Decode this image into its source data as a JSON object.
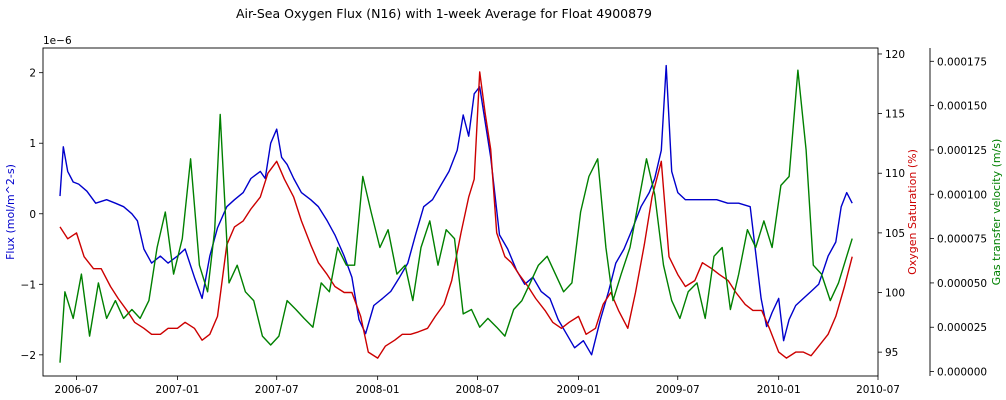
{
  "chart_data": {
    "type": "line",
    "title": "Air-Sea Oxygen Flux (N16) with 1-week Average for Float 4900879",
    "x_ticks": [
      "2006-07",
      "2007-01",
      "2007-07",
      "2008-01",
      "2008-07",
      "2009-01",
      "2009-07",
      "2010-01",
      "2010-07"
    ],
    "xlim": [
      "2006-05-01",
      "2010-07-01"
    ],
    "axes": {
      "left": {
        "label": "Flux (mol/m^2-s)",
        "color": "#0000cc",
        "offset_label": "1e−6",
        "ylim": [
          -2.3e-06,
          2.35e-06
        ],
        "ticks": [
          -2e-06,
          -1e-06,
          0,
          1e-06,
          2e-06
        ],
        "tick_labels": [
          "−2",
          "−1",
          "0",
          "1",
          "2"
        ]
      },
      "right": {
        "label": "Oxygen Saturation (%)",
        "color": "#cc0000",
        "ylim": [
          93,
          120.5
        ],
        "ticks": [
          95,
          100,
          105,
          110,
          115,
          120
        ],
        "tick_labels": [
          "95",
          "100",
          "105",
          "110",
          "115",
          "120"
        ]
      },
      "far_right": {
        "label": "Gas transfer velocity (m/s)",
        "color": "#008000",
        "ylim": [
          -2.5e-06,
          0.0001825
        ],
        "ticks": [
          0,
          2.5e-05,
          5e-05,
          7.5e-05,
          0.0001,
          0.000125,
          0.00015,
          0.000175
        ],
        "tick_labels": [
          "0.000000",
          "0.000025",
          "0.000050",
          "0.000075",
          "0.000100",
          "0.000125",
          "0.000150",
          "0.000175"
        ]
      }
    },
    "series": [
      {
        "axis": "left",
        "color": "#0000cc",
        "x": [
          "2006-06-01",
          "2006-06-07",
          "2006-06-15",
          "2006-06-25",
          "2006-07-05",
          "2006-07-20",
          "2006-08-05",
          "2006-08-25",
          "2006-09-10",
          "2006-09-25",
          "2006-10-10",
          "2006-10-20",
          "2006-11-01",
          "2006-11-15",
          "2006-12-01",
          "2006-12-15",
          "2007-01-01",
          "2007-01-15",
          "2007-02-01",
          "2007-02-15",
          "2007-03-01",
          "2007-03-15",
          "2007-04-01",
          "2007-04-15",
          "2007-05-01",
          "2007-05-15",
          "2007-06-01",
          "2007-06-10",
          "2007-06-20",
          "2007-07-01",
          "2007-07-10",
          "2007-07-20",
          "2007-08-01",
          "2007-08-15",
          "2007-09-01",
          "2007-09-15",
          "2007-10-01",
          "2007-10-15",
          "2007-11-01",
          "2007-11-15",
          "2007-11-28",
          "2007-12-10",
          "2007-12-25",
          "2008-01-10",
          "2008-01-25",
          "2008-02-10",
          "2008-02-25",
          "2008-03-10",
          "2008-03-25",
          "2008-04-10",
          "2008-04-25",
          "2008-05-10",
          "2008-05-25",
          "2008-06-05",
          "2008-06-15",
          "2008-06-25",
          "2008-07-05",
          "2008-07-15",
          "2008-07-25",
          "2008-08-10",
          "2008-08-25",
          "2008-09-10",
          "2008-09-25",
          "2008-10-10",
          "2008-10-25",
          "2008-11-10",
          "2008-11-25",
          "2008-12-10",
          "2008-12-25",
          "2009-01-10",
          "2009-01-25",
          "2009-02-10",
          "2009-02-25",
          "2009-03-10",
          "2009-03-25",
          "2009-04-10",
          "2009-04-25",
          "2009-05-10",
          "2009-05-20",
          "2009-06-01",
          "2009-06-10",
          "2009-06-20",
          "2009-07-01",
          "2009-07-15",
          "2009-08-01",
          "2009-08-20",
          "2009-09-10",
          "2009-09-30",
          "2009-10-20",
          "2009-11-10",
          "2009-11-30",
          "2009-12-10",
          "2009-12-20",
          "2010-01-01",
          "2010-01-10",
          "2010-01-20",
          "2010-02-01",
          "2010-02-15",
          "2010-03-01",
          "2010-03-15",
          "2010-04-01",
          "2010-04-15",
          "2010-04-25",
          "2010-05-05",
          "2010-05-15"
        ],
        "values": [
          2.5e-07,
          9.5e-07,
          6e-07,
          4.5e-07,
          4.2e-07,
          3.2e-07,
          1.5e-07,
          2e-07,
          1.5e-07,
          1e-07,
          0,
          -1e-07,
          -5e-07,
          -7e-07,
          -6e-07,
          -7e-07,
          -6e-07,
          -5e-07,
          -9e-07,
          -1.2e-06,
          -6e-07,
          -2e-07,
          1e-07,
          2e-07,
          3e-07,
          5e-07,
          6e-07,
          5e-07,
          1e-06,
          1.2e-06,
          8e-07,
          7e-07,
          5e-07,
          3e-07,
          2e-07,
          1e-07,
          -1e-07,
          -3e-07,
          -6e-07,
          -9e-07,
          -1.5e-06,
          -1.7e-06,
          -1.3e-06,
          -1.2e-06,
          -1.1e-06,
          -9e-07,
          -7e-07,
          -3e-07,
          1e-07,
          2e-07,
          4e-07,
          6e-07,
          9e-07,
          1.4e-06,
          1.1e-06,
          1.7e-06,
          1.8e-06,
          1.3e-06,
          8e-07,
          -3e-07,
          -5e-07,
          -8e-07,
          -1e-06,
          -9e-07,
          -1.1e-06,
          -1.2e-06,
          -1.5e-06,
          -1.7e-06,
          -1.9e-06,
          -1.8e-06,
          -2e-06,
          -1.5e-06,
          -1.1e-06,
          -7e-07,
          -5e-07,
          -2e-07,
          1e-07,
          3e-07,
          5e-07,
          9e-07,
          2.1e-06,
          6e-07,
          3e-07,
          2e-07,
          2e-07,
          2e-07,
          2e-07,
          1.5e-07,
          1.5e-07,
          1e-07,
          -1.2e-06,
          -1.6e-06,
          -1.4e-06,
          -1.2e-06,
          -1.8e-06,
          -1.5e-06,
          -1.3e-06,
          -1.2e-06,
          -1.1e-06,
          -1e-06,
          -6e-07,
          -4e-07,
          1e-07,
          3e-07,
          1.5e-07
        ]
      },
      {
        "axis": "right",
        "color": "#cc0000",
        "x": [
          "2006-06-01",
          "2006-06-15",
          "2006-07-01",
          "2006-07-15",
          "2006-08-01",
          "2006-08-15",
          "2006-09-01",
          "2006-09-15",
          "2006-10-01",
          "2006-10-15",
          "2006-11-01",
          "2006-11-15",
          "2006-12-01",
          "2006-12-15",
          "2007-01-01",
          "2007-01-15",
          "2007-02-01",
          "2007-02-15",
          "2007-03-01",
          "2007-03-15",
          "2007-04-01",
          "2007-04-15",
          "2007-05-01",
          "2007-05-15",
          "2007-06-01",
          "2007-06-15",
          "2007-07-01",
          "2007-07-15",
          "2007-08-01",
          "2007-08-15",
          "2007-09-01",
          "2007-09-15",
          "2007-10-01",
          "2007-10-15",
          "2007-11-01",
          "2007-11-15",
          "2007-12-01",
          "2007-12-15",
          "2008-01-01",
          "2008-01-15",
          "2008-02-01",
          "2008-02-15",
          "2008-03-01",
          "2008-03-15",
          "2008-04-01",
          "2008-04-15",
          "2008-05-01",
          "2008-05-15",
          "2008-06-01",
          "2008-06-15",
          "2008-06-25",
          "2008-07-05",
          "2008-07-15",
          "2008-07-25",
          "2008-08-05",
          "2008-08-20",
          "2008-09-01",
          "2008-09-15",
          "2008-10-01",
          "2008-10-15",
          "2008-11-01",
          "2008-11-15",
          "2008-12-01",
          "2008-12-15",
          "2009-01-01",
          "2009-01-15",
          "2009-02-01",
          "2009-02-15",
          "2009-03-01",
          "2009-03-15",
          "2009-04-01",
          "2009-04-15",
          "2009-05-01",
          "2009-05-15",
          "2009-06-01",
          "2009-06-15",
          "2009-07-01",
          "2009-07-15",
          "2009-08-01",
          "2009-08-15",
          "2009-09-01",
          "2009-09-15",
          "2009-10-01",
          "2009-10-15",
          "2009-11-01",
          "2009-11-15",
          "2009-12-01",
          "2009-12-15",
          "2010-01-01",
          "2010-01-15",
          "2010-02-01",
          "2010-02-15",
          "2010-03-01",
          "2010-03-15",
          "2010-04-01",
          "2010-04-15",
          "2010-05-01",
          "2010-05-15"
        ],
        "values": [
          105.5,
          104.5,
          105,
          103,
          102,
          102,
          100.5,
          99.5,
          98.5,
          97.5,
          97,
          96.5,
          96.5,
          97,
          97,
          97.5,
          97,
          96,
          96.5,
          98,
          104,
          105.5,
          106,
          107,
          108,
          110,
          111,
          109.5,
          108,
          106,
          104,
          102.5,
          101.5,
          100.5,
          100,
          100,
          98,
          95,
          94.5,
          95.5,
          96,
          96.5,
          96.5,
          96.7,
          97,
          98,
          99,
          101,
          105,
          108,
          109.5,
          118.5,
          115,
          112,
          105,
          103,
          102.5,
          101.5,
          100.5,
          99.5,
          98.5,
          97.5,
          97,
          97.5,
          98,
          96.5,
          97,
          99,
          100,
          98.5,
          97,
          100,
          104,
          108,
          111,
          103,
          101.5,
          100.5,
          101,
          102.5,
          102,
          101.5,
          101,
          100,
          99,
          98.5,
          98.5,
          97,
          95,
          94.5,
          95,
          95,
          94.7,
          95.5,
          96.5,
          98,
          100.5,
          103
        ]
      },
      {
        "axis": "far_right",
        "color": "#008000",
        "x": [
          "2006-06-01",
          "2006-06-10",
          "2006-06-25",
          "2006-07-10",
          "2006-07-25",
          "2006-08-10",
          "2006-08-25",
          "2006-09-10",
          "2006-09-25",
          "2006-10-10",
          "2006-10-25",
          "2006-11-10",
          "2006-11-25",
          "2006-12-10",
          "2006-12-25",
          "2007-01-10",
          "2007-01-25",
          "2007-02-10",
          "2007-02-25",
          "2007-03-10",
          "2007-03-20",
          "2007-04-05",
          "2007-04-20",
          "2007-05-05",
          "2007-05-20",
          "2007-06-05",
          "2007-06-20",
          "2007-07-05",
          "2007-07-20",
          "2007-08-05",
          "2007-08-20",
          "2007-09-05",
          "2007-09-20",
          "2007-10-05",
          "2007-10-20",
          "2007-11-05",
          "2007-11-20",
          "2007-12-05",
          "2007-12-20",
          "2008-01-05",
          "2008-01-20",
          "2008-02-05",
          "2008-02-20",
          "2008-03-05",
          "2008-03-20",
          "2008-04-05",
          "2008-04-20",
          "2008-05-05",
          "2008-05-20",
          "2008-06-05",
          "2008-06-20",
          "2008-07-05",
          "2008-07-20",
          "2008-08-05",
          "2008-08-20",
          "2008-09-05",
          "2008-09-20",
          "2008-10-05",
          "2008-10-20",
          "2008-11-05",
          "2008-11-20",
          "2008-12-05",
          "2008-12-20",
          "2009-01-05",
          "2009-01-20",
          "2009-02-05",
          "2009-02-20",
          "2009-03-05",
          "2009-03-20",
          "2009-04-05",
          "2009-04-20",
          "2009-05-05",
          "2009-05-20",
          "2009-06-05",
          "2009-06-20",
          "2009-07-05",
          "2009-07-20",
          "2009-08-05",
          "2009-08-20",
          "2009-09-05",
          "2009-09-20",
          "2009-10-05",
          "2009-10-20",
          "2009-11-05",
          "2009-11-20",
          "2009-12-05",
          "2009-12-20",
          "2010-01-05",
          "2010-01-20",
          "2010-02-05",
          "2010-02-20",
          "2010-03-05",
          "2010-03-20",
          "2010-04-05",
          "2010-04-20",
          "2010-05-05",
          "2010-05-15"
        ],
        "values": [
          5e-06,
          4.5e-05,
          3e-05,
          5.5e-05,
          2e-05,
          5e-05,
          3e-05,
          4e-05,
          3e-05,
          3.5e-05,
          3e-05,
          4e-05,
          7e-05,
          9e-05,
          5.5e-05,
          7.5e-05,
          0.00012,
          6e-05,
          4.5e-05,
          8e-05,
          0.000145,
          5e-05,
          6e-05,
          4.5e-05,
          4e-05,
          2e-05,
          1.5e-05,
          2e-05,
          4e-05,
          3.5e-05,
          3e-05,
          2.5e-05,
          5e-05,
          4.5e-05,
          7e-05,
          6e-05,
          6e-05,
          0.00011,
          9e-05,
          7e-05,
          8e-05,
          5.5e-05,
          6e-05,
          4e-05,
          7e-05,
          8.5e-05,
          6e-05,
          8e-05,
          7.5e-05,
          3.25e-05,
          3.5e-05,
          2.5e-05,
          3e-05,
          2.5e-05,
          2e-05,
          3.5e-05,
          4e-05,
          5e-05,
          6e-05,
          6.5e-05,
          5.5e-05,
          4.5e-05,
          5e-05,
          9e-05,
          0.00011,
          0.00012,
          7e-05,
          4e-05,
          5.5e-05,
          7e-05,
          9.5e-05,
          0.00012,
          0.0001,
          6e-05,
          4e-05,
          3e-05,
          4.5e-05,
          5e-05,
          3e-05,
          6.5e-05,
          7e-05,
          3.5e-05,
          5.5e-05,
          8e-05,
          7e-05,
          8.5e-05,
          7e-05,
          0.000105,
          0.00011,
          0.00017,
          0.000125,
          6e-05,
          5.5e-05,
          4e-05,
          5e-05,
          6.5e-05,
          7.5e-05
        ]
      }
    ],
    "grid": false,
    "legend": "none"
  }
}
